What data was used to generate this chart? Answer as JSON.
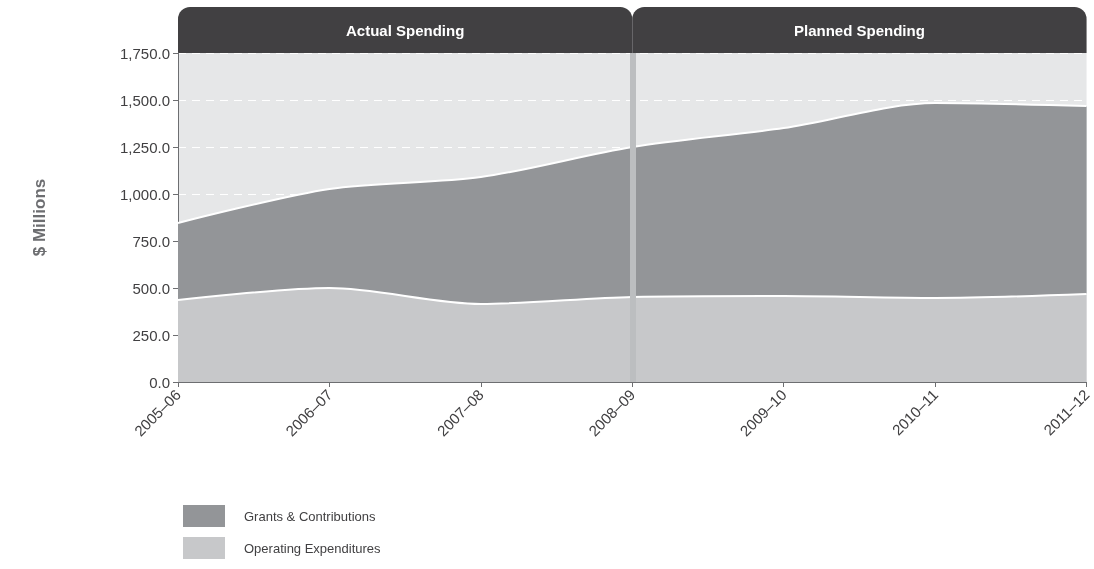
{
  "chart_data": {
    "type": "area",
    "stacked": true,
    "ylabel": "$ Millions",
    "categories": [
      "2005–06",
      "2006–07",
      "2007–08",
      "2008–09",
      "2009–10",
      "2010–11",
      "2011–12"
    ],
    "series": [
      {
        "name": "Operating Expenditures",
        "color": "#c7c8ca",
        "values": [
          436,
          500,
          415,
          452,
          457,
          447,
          468
        ]
      },
      {
        "name": "Grants & Contributions",
        "color": "#939598",
        "values": [
          410,
          527,
          675,
          798,
          894,
          1037,
          1000
        ]
      }
    ],
    "ylim": [
      0,
      1750
    ],
    "yticks": [
      {
        "value": 0,
        "label": "0.0"
      },
      {
        "value": 250,
        "label": "250.0"
      },
      {
        "value": 500,
        "label": "500.0"
      },
      {
        "value": 750,
        "label": "750.0"
      },
      {
        "value": 1000,
        "label": "1,000.0"
      },
      {
        "value": 1250,
        "label": "1,250.0"
      },
      {
        "value": 1500,
        "label": "1,500.0"
      },
      {
        "value": 1750,
        "label": "1,750.0"
      }
    ],
    "grid": "y",
    "legend": "bottom left",
    "annotations": [
      "Actual Spending",
      "Planned Spending"
    ],
    "ref_lines": [
      {
        "axis": "x",
        "value": "2008–09",
        "label": null,
        "color": "#bcbec0"
      }
    ]
  }
}
